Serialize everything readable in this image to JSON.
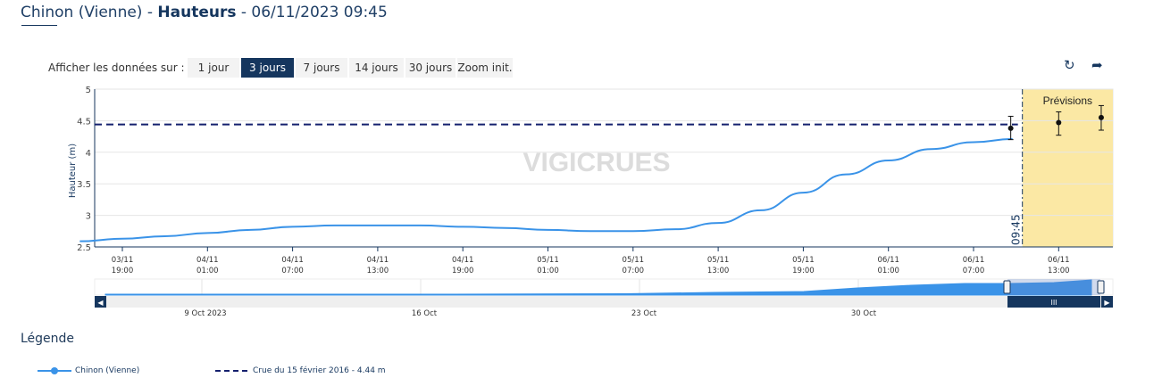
{
  "header": {
    "station": "Chinon (Vienne)",
    "sep1": " - ",
    "variable": "Hauteurs",
    "sep2": " - ",
    "datetime": "06/11/2023 09:45"
  },
  "range_selector": {
    "label": "Afficher les données sur :",
    "buttons": [
      "1 jour",
      "3 jours",
      "7 jours",
      "14 jours",
      "30 jours",
      "Zoom init."
    ],
    "active": "3 jours"
  },
  "toolbar": {
    "refresh_icon": "refresh-icon",
    "share_icon": "share-arrow-icon"
  },
  "watermark": "VIGICRUES",
  "legend": {
    "title": "Légende",
    "items": [
      "Chinon (Vienne)",
      "Crue du 15 février 2016 - 4.44 m"
    ]
  },
  "colors": {
    "series": "#3a93e8",
    "reference": "#15206e",
    "forecast_bg": "#fbe8a4",
    "navy": "#15365e"
  },
  "chart_data": {
    "type": "line",
    "ylabel": "Hauteur (m)",
    "ylim": [
      2.5,
      5
    ],
    "yticks": [
      "2.5",
      "3",
      "3.5",
      "4",
      "4.5",
      "5"
    ],
    "xticks": [
      {
        "date": "03/11",
        "time": "19:00"
      },
      {
        "date": "04/11",
        "time": "01:00"
      },
      {
        "date": "04/11",
        "time": "07:00"
      },
      {
        "date": "04/11",
        "time": "13:00"
      },
      {
        "date": "04/11",
        "time": "19:00"
      },
      {
        "date": "05/11",
        "time": "01:00"
      },
      {
        "date": "05/11",
        "time": "07:00"
      },
      {
        "date": "05/11",
        "time": "13:00"
      },
      {
        "date": "05/11",
        "time": "19:00"
      },
      {
        "date": "06/11",
        "time": "01:00"
      },
      {
        "date": "06/11",
        "time": "07:00"
      },
      {
        "date": "06/11",
        "time": "13:00"
      }
    ],
    "now_label": "09:45",
    "forecast_label": "Prévisions",
    "series": [
      {
        "name": "Chinon (Vienne)",
        "x": [
          "03/11 16:00",
          "03/11 19:00",
          "03/11 22:00",
          "04/11 01:00",
          "04/11 04:00",
          "04/11 07:00",
          "04/11 10:00",
          "04/11 13:00",
          "04/11 16:00",
          "04/11 19:00",
          "04/11 22:00",
          "05/11 01:00",
          "05/11 04:00",
          "05/11 07:00",
          "05/11 10:00",
          "05/11 13:00",
          "05/11 16:00",
          "05/11 19:00",
          "05/11 22:00",
          "06/11 01:00",
          "06/11 04:00",
          "06/11 07:00",
          "06/11 09:45"
        ],
        "y": [
          2.59,
          2.63,
          2.67,
          2.72,
          2.77,
          2.82,
          2.84,
          2.84,
          2.84,
          2.82,
          2.8,
          2.77,
          2.75,
          2.75,
          2.78,
          2.88,
          3.08,
          3.36,
          3.65,
          3.87,
          4.05,
          4.16,
          4.21
        ]
      }
    ],
    "reference": {
      "name": "Crue du 15 février 2016 - 4.44 m",
      "value": 4.44
    },
    "forecasts": [
      {
        "x": "06/11 10:00",
        "value": 4.38,
        "low": 4.2,
        "high": 4.57
      },
      {
        "x": "06/11 13:00",
        "value": 4.47,
        "low": 4.27,
        "high": 4.64
      },
      {
        "x": "06/11 16:00",
        "value": 4.55,
        "low": 4.35,
        "high": 4.74
      }
    ],
    "navigator": {
      "labels": [
        "9 Oct 2023",
        "16 Oct",
        "23 Oct",
        "30 Oct"
      ]
    }
  }
}
